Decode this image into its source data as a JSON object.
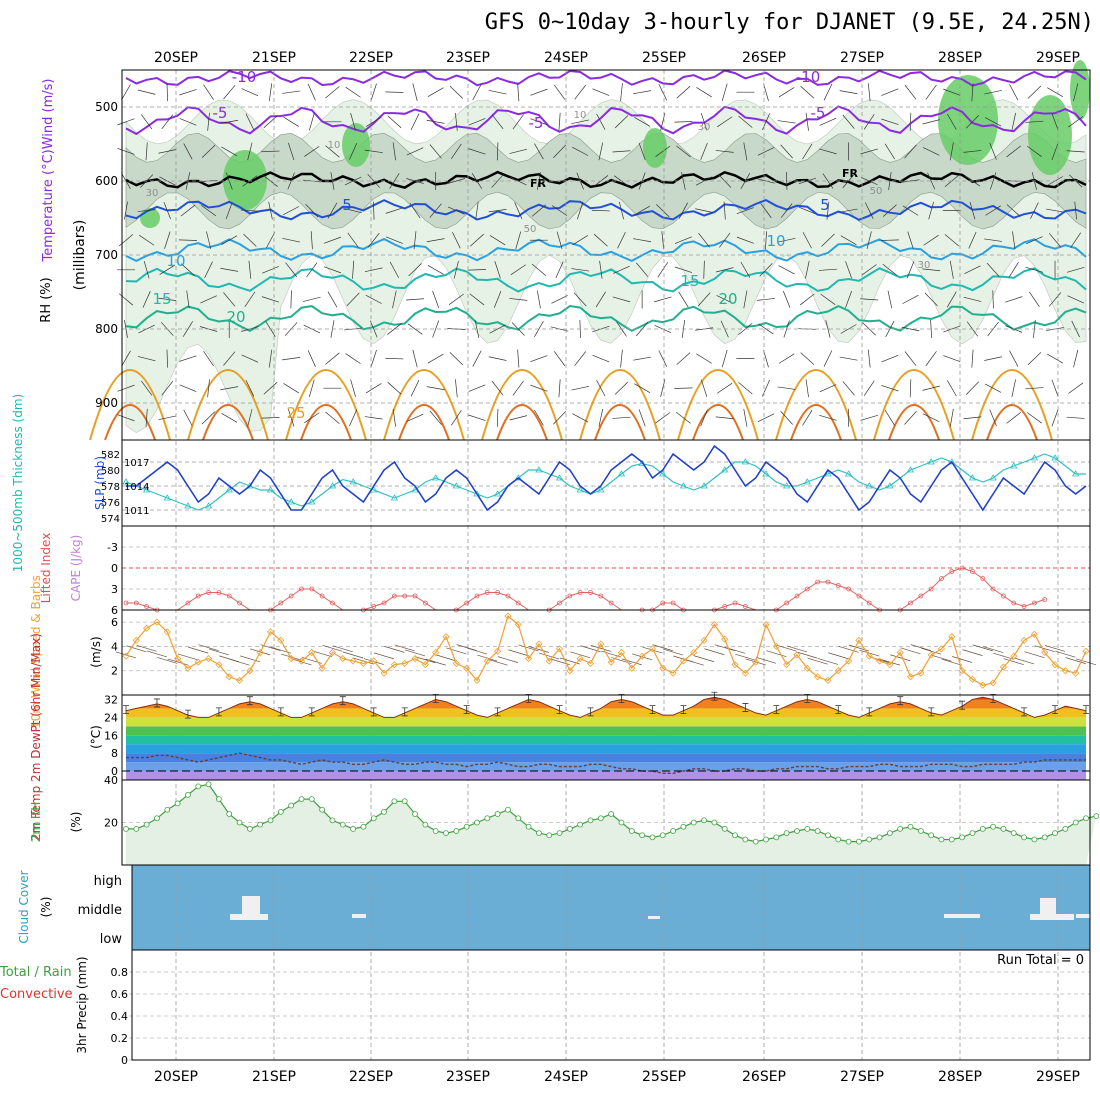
{
  "title": "GFS 0~10day 3-hourly for DJANET (9.5E, 24.25N)",
  "colors": {
    "rh_light": "#e6f2e6",
    "rh_mid": "#c9d9c9",
    "rh_dark": "#a9bba9",
    "rh_green": "#66cc66",
    "purple": "#8a2be2",
    "blue": "#2050d8",
    "lightblue": "#2aa0e0",
    "teal": "#20b8b0",
    "seagreen": "#20b090",
    "orange": "#e8a020",
    "darkorange": "#e07020",
    "magenta": "#e0208a",
    "sky": "#6aaed6",
    "cloud_white": "#f0f0f0",
    "wind": "#f0a030",
    "lifted": "#e06060",
    "rh2m": "#40a040"
  },
  "chart_data": [
    {
      "panel": "upper_air",
      "type": "area",
      "dates": [
        "20SEP",
        "21SEP",
        "22SEP",
        "23SEP",
        "24SEP",
        "25SEP",
        "26SEP",
        "27SEP",
        "28SEP",
        "29SEP"
      ],
      "ylabel_left": "RH (%)",
      "ylabel_left2": "Temperature (°C)Wind (m/s)",
      "ylabel_right": "(millibars)",
      "y_ticks": [
        "500",
        "600",
        "700",
        "800",
        "900"
      ],
      "ylim": [
        450,
        950
      ],
      "freezing_label": "FR",
      "isotherm_labels": [
        "-10",
        "-5",
        "-5",
        "-10",
        "-5",
        "5",
        "5",
        "10",
        "10",
        "15",
        "15",
        "20",
        "20",
        "25"
      ],
      "rh_labels": [
        "30",
        "10",
        "30",
        "50",
        "10",
        "50",
        "30"
      ]
    },
    {
      "panel": "slp_thickness",
      "type": "line",
      "ylabel_left": "1000~500mb Thickness (dm)",
      "ylabel_right": "SLP (mb)",
      "left_ticks": [
        "582",
        "580",
        "578",
        "576",
        "574"
      ],
      "right_ticks": [
        "1017",
        "1014",
        "1011"
      ],
      "series": [
        {
          "name": "SLP (mb)",
          "color": "#2040c8",
          "values": [
            1014,
            1014,
            1015,
            1016,
            1017,
            1016,
            1014,
            1012,
            1013,
            1015,
            1014,
            1013,
            1014,
            1016,
            1015,
            1013,
            1011,
            1011,
            1013,
            1015,
            1016,
            1014,
            1013,
            1012,
            1014,
            1016,
            1017,
            1015,
            1014,
            1012,
            1013,
            1015,
            1016,
            1015,
            1013,
            1011,
            1012,
            1014,
            1015,
            1014,
            1013,
            1015,
            1017,
            1016,
            1014,
            1013,
            1014,
            1016,
            1017,
            1018,
            1017,
            1015,
            1016,
            1018,
            1017,
            1016,
            1017,
            1019,
            1018,
            1016,
            1014,
            1015,
            1017,
            1016,
            1015,
            1013,
            1012,
            1014,
            1016,
            1015,
            1013,
            1011,
            1012,
            1014,
            1016,
            1015,
            1013,
            1012,
            1014,
            1016,
            1017,
            1015,
            1013,
            1011,
            1013,
            1015,
            1014,
            1013,
            1015,
            1017,
            1016,
            1014,
            1013,
            1014
          ]
        },
        {
          "name": "1000~500mb Thickness (dm)",
          "color": "#30c0c0",
          "values": [
            578.5,
            578,
            577.5,
            577,
            576.5,
            576,
            575.5,
            575,
            575.5,
            576.5,
            577.5,
            578.5,
            578,
            577.5,
            577.5,
            576.5,
            576,
            575.5,
            576,
            577,
            578,
            578.8,
            578.5,
            578,
            577.5,
            577,
            576.5,
            577,
            577.5,
            578.5,
            579,
            578.5,
            578,
            577.5,
            577,
            576.5,
            577,
            578,
            579,
            580,
            580,
            579.5,
            579,
            578,
            577.5,
            577,
            577.5,
            578.5,
            579.5,
            580.5,
            580.8,
            580.5,
            579.5,
            578.5,
            578,
            577.5,
            578,
            579,
            580,
            581,
            581,
            580.5,
            579.5,
            578.5,
            578,
            578,
            578.5,
            579,
            579.5,
            580,
            579.5,
            578.5,
            578,
            577.5,
            578,
            579,
            580,
            580.5,
            581,
            581.5,
            581,
            580,
            579,
            578.5,
            579,
            580,
            580.5,
            581,
            581.5,
            582,
            581.5,
            580.5,
            579.5,
            579.5
          ]
        }
      ]
    },
    {
      "panel": "lifted_cape",
      "type": "line",
      "ylabel_left": "Lifted Index",
      "ylabel_right": "CAPE (J/kg)",
      "ticks": [
        "-3",
        "0",
        "3",
        "6"
      ],
      "ylim": [
        -6,
        6
      ],
      "series": [
        {
          "name": "Lifted Index",
          "color": "#e06060",
          "values": [
            5,
            5,
            5.5,
            6,
            6.5,
            6.5,
            5,
            4,
            3.5,
            3.5,
            4,
            5,
            6.5,
            6.5,
            6,
            5,
            4,
            3,
            3,
            4,
            5,
            6.5,
            6.5,
            6,
            5.5,
            5,
            4,
            4,
            4,
            5,
            6.5,
            6.5,
            6,
            5,
            4,
            3.5,
            3.5,
            4,
            5,
            6.5,
            6.5,
            6,
            5,
            4,
            3.5,
            3.5,
            4,
            5,
            6.5,
            6.5,
            6,
            6,
            5,
            5,
            6,
            6.5,
            6.5,
            6,
            5.5,
            5,
            5.5,
            6.5,
            6.5,
            6,
            5,
            4,
            3,
            2,
            2,
            2.5,
            3,
            4,
            5,
            6,
            6.5,
            6,
            5,
            4,
            3,
            1.5,
            0.5,
            0,
            0.5,
            1.5,
            3,
            4,
            5,
            5.5,
            5,
            4.5
          ]
        }
      ]
    },
    {
      "panel": "wind10m",
      "type": "line",
      "ylabel_left": "10m Wind Speed & Barbs",
      "ylabel_right": "(m/s)",
      "ticks": [
        "2",
        "4",
        "6"
      ],
      "ylim": [
        0,
        7
      ],
      "series": [
        {
          "name": "10m Wind Speed (m/s)",
          "color": "#f0a030",
          "values": [
            3.2,
            4.5,
            5.5,
            6,
            5.2,
            3,
            2.2,
            2.7,
            3,
            2.5,
            1.5,
            1.2,
            2,
            3.5,
            5.2,
            4.5,
            3,
            2.8,
            3.5,
            2.2,
            3.5,
            3,
            2.8,
            2.6,
            2.8,
            1.8,
            2.5,
            2.6,
            3,
            2.5,
            3.5,
            4.8,
            2.6,
            2.2,
            1.2,
            2.8,
            3.6,
            6.5,
            5.8,
            3,
            4.2,
            2.8,
            3.8,
            2,
            3,
            2.6,
            4.2,
            2.7,
            3.5,
            2.2,
            3.2,
            3.8,
            2.2,
            1.8,
            2.8,
            3.5,
            4.5,
            5.8,
            4.6,
            2.5,
            1.8,
            2.7,
            5.8,
            4,
            2.5,
            3.3,
            2.2,
            1.5,
            1.2,
            2,
            2.8,
            4.5,
            3.2,
            2.8,
            2.5,
            3.5,
            1.5,
            1.8,
            3.3,
            3.8,
            4.8,
            2,
            1.3,
            0.8,
            1,
            2.3,
            3.2,
            4.5,
            5,
            3.5,
            2.5,
            2,
            1.8,
            3.6
          ]
        }
      ]
    },
    {
      "panel": "temp2m",
      "type": "area",
      "ylabel_left": "2m Temp 2m DewPt (6hr Min/Max)",
      "ylabel_right": "(°C)",
      "ticks": [
        "32",
        "24",
        "16",
        "8",
        "0"
      ],
      "ylim": [
        -4,
        34
      ],
      "series": [
        {
          "name": "2m Temp",
          "values": [
            27,
            28,
            29,
            30,
            29,
            27,
            25,
            24,
            24,
            26,
            28,
            30,
            31,
            30,
            28,
            26,
            24,
            24,
            26,
            28,
            30,
            31,
            30,
            28,
            26,
            24,
            24,
            26,
            28,
            30,
            32,
            31,
            29,
            27,
            25,
            24,
            26,
            28,
            30,
            32,
            31,
            29,
            27,
            25,
            24,
            26,
            28,
            31,
            32,
            31,
            29,
            27,
            25,
            25,
            27,
            29,
            32,
            33,
            32,
            30,
            28,
            26,
            25,
            27,
            29,
            31,
            32,
            31,
            29,
            27,
            25,
            24,
            26,
            28,
            30,
            31,
            30,
            28,
            26,
            25,
            27,
            29,
            32,
            33,
            32,
            30,
            28,
            26,
            24,
            25,
            27,
            29,
            28,
            27
          ]
        },
        {
          "name": "2m DewPt",
          "values": [
            6,
            6,
            6,
            7,
            7,
            6,
            5,
            4,
            5,
            6,
            7,
            8,
            7,
            6,
            5,
            5,
            4,
            3,
            4,
            5,
            4,
            4,
            3,
            3,
            4,
            5,
            4,
            3,
            3,
            4,
            4,
            3,
            3,
            2,
            3,
            3,
            4,
            3,
            2,
            2,
            3,
            3,
            2,
            2,
            2,
            3,
            3,
            2,
            1,
            1,
            0,
            0,
            -1,
            -1,
            0,
            1,
            1,
            0,
            0,
            1,
            1,
            0,
            0,
            1,
            1,
            2,
            2,
            2,
            1,
            1,
            2,
            2,
            2,
            3,
            3,
            2,
            2,
            2,
            3,
            3,
            3,
            2,
            2,
            3,
            3,
            3,
            3,
            4,
            4,
            5,
            5,
            5,
            5,
            5
          ]
        }
      ]
    },
    {
      "panel": "rh2m",
      "type": "area",
      "ylabel_left": "2m RH",
      "ylabel_right": "(%)",
      "ticks": [
        "40",
        "20"
      ],
      "ylim": [
        0,
        40
      ],
      "series": [
        {
          "name": "2m RH (%)",
          "color": "#40a040",
          "values": [
            17,
            17,
            19,
            22,
            26,
            29,
            33,
            37,
            38,
            31,
            24,
            20,
            17,
            19,
            21,
            25,
            28,
            31,
            31,
            26,
            21,
            19,
            17,
            18,
            22,
            25,
            30,
            30,
            24,
            19,
            16,
            15,
            16,
            18,
            20,
            22,
            24,
            26,
            22,
            18,
            15,
            14,
            15,
            17,
            19,
            21,
            22,
            24,
            20,
            16,
            14,
            13,
            14,
            16,
            18,
            20,
            21,
            20,
            17,
            14,
            12,
            11,
            12,
            13,
            15,
            16,
            17,
            16,
            14,
            12,
            11,
            11,
            12,
            13,
            15,
            17,
            18,
            16,
            14,
            12,
            12,
            13,
            15,
            17,
            18,
            17,
            15,
            13,
            12,
            13,
            15,
            17,
            20,
            22,
            23
          ]
        }
      ]
    },
    {
      "panel": "cloud_cover",
      "type": "bar",
      "ylabel_left": "Cloud Cover",
      "ylabel_right": "(%)",
      "levels": [
        "high",
        "middle",
        "low"
      ]
    },
    {
      "panel": "precip",
      "type": "bar",
      "ylabel_left": "Total / Rain",
      "ylabel_left2": "Convective",
      "ylabel_right": "3hr Precip (mm)",
      "ticks": [
        "0.8",
        "0.6",
        "0.4",
        "0.2",
        "0"
      ],
      "ylim": [
        0,
        1
      ],
      "run_total": "Run Total = 0",
      "values": []
    }
  ]
}
